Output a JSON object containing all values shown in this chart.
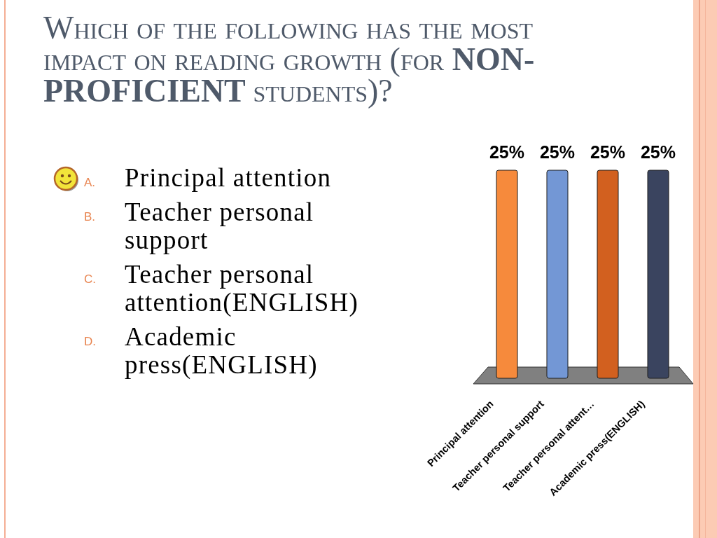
{
  "chart_data": {
    "type": "bar",
    "title": "Which of the following has the most impact on reading growth (for NON-PROFICIENT students)?",
    "categories": [
      "Principal attention",
      "Teacher personal support",
      "Teacher personal attent…",
      "Academic press(ENGLISH)"
    ],
    "values": [
      25,
      25,
      25,
      25
    ],
    "colors": [
      "#f68a3c",
      "#7397d5",
      "#d2601f",
      "#3a445f"
    ],
    "value_labels": [
      "25%",
      "25%",
      "25%",
      "25%"
    ],
    "annotations": [
      "A. Principal attention",
      "B. Teacher personal support",
      "C. Teacher personal attention(ENGLISH)",
      "D. Academic press(ENGLISH)"
    ]
  }
}
